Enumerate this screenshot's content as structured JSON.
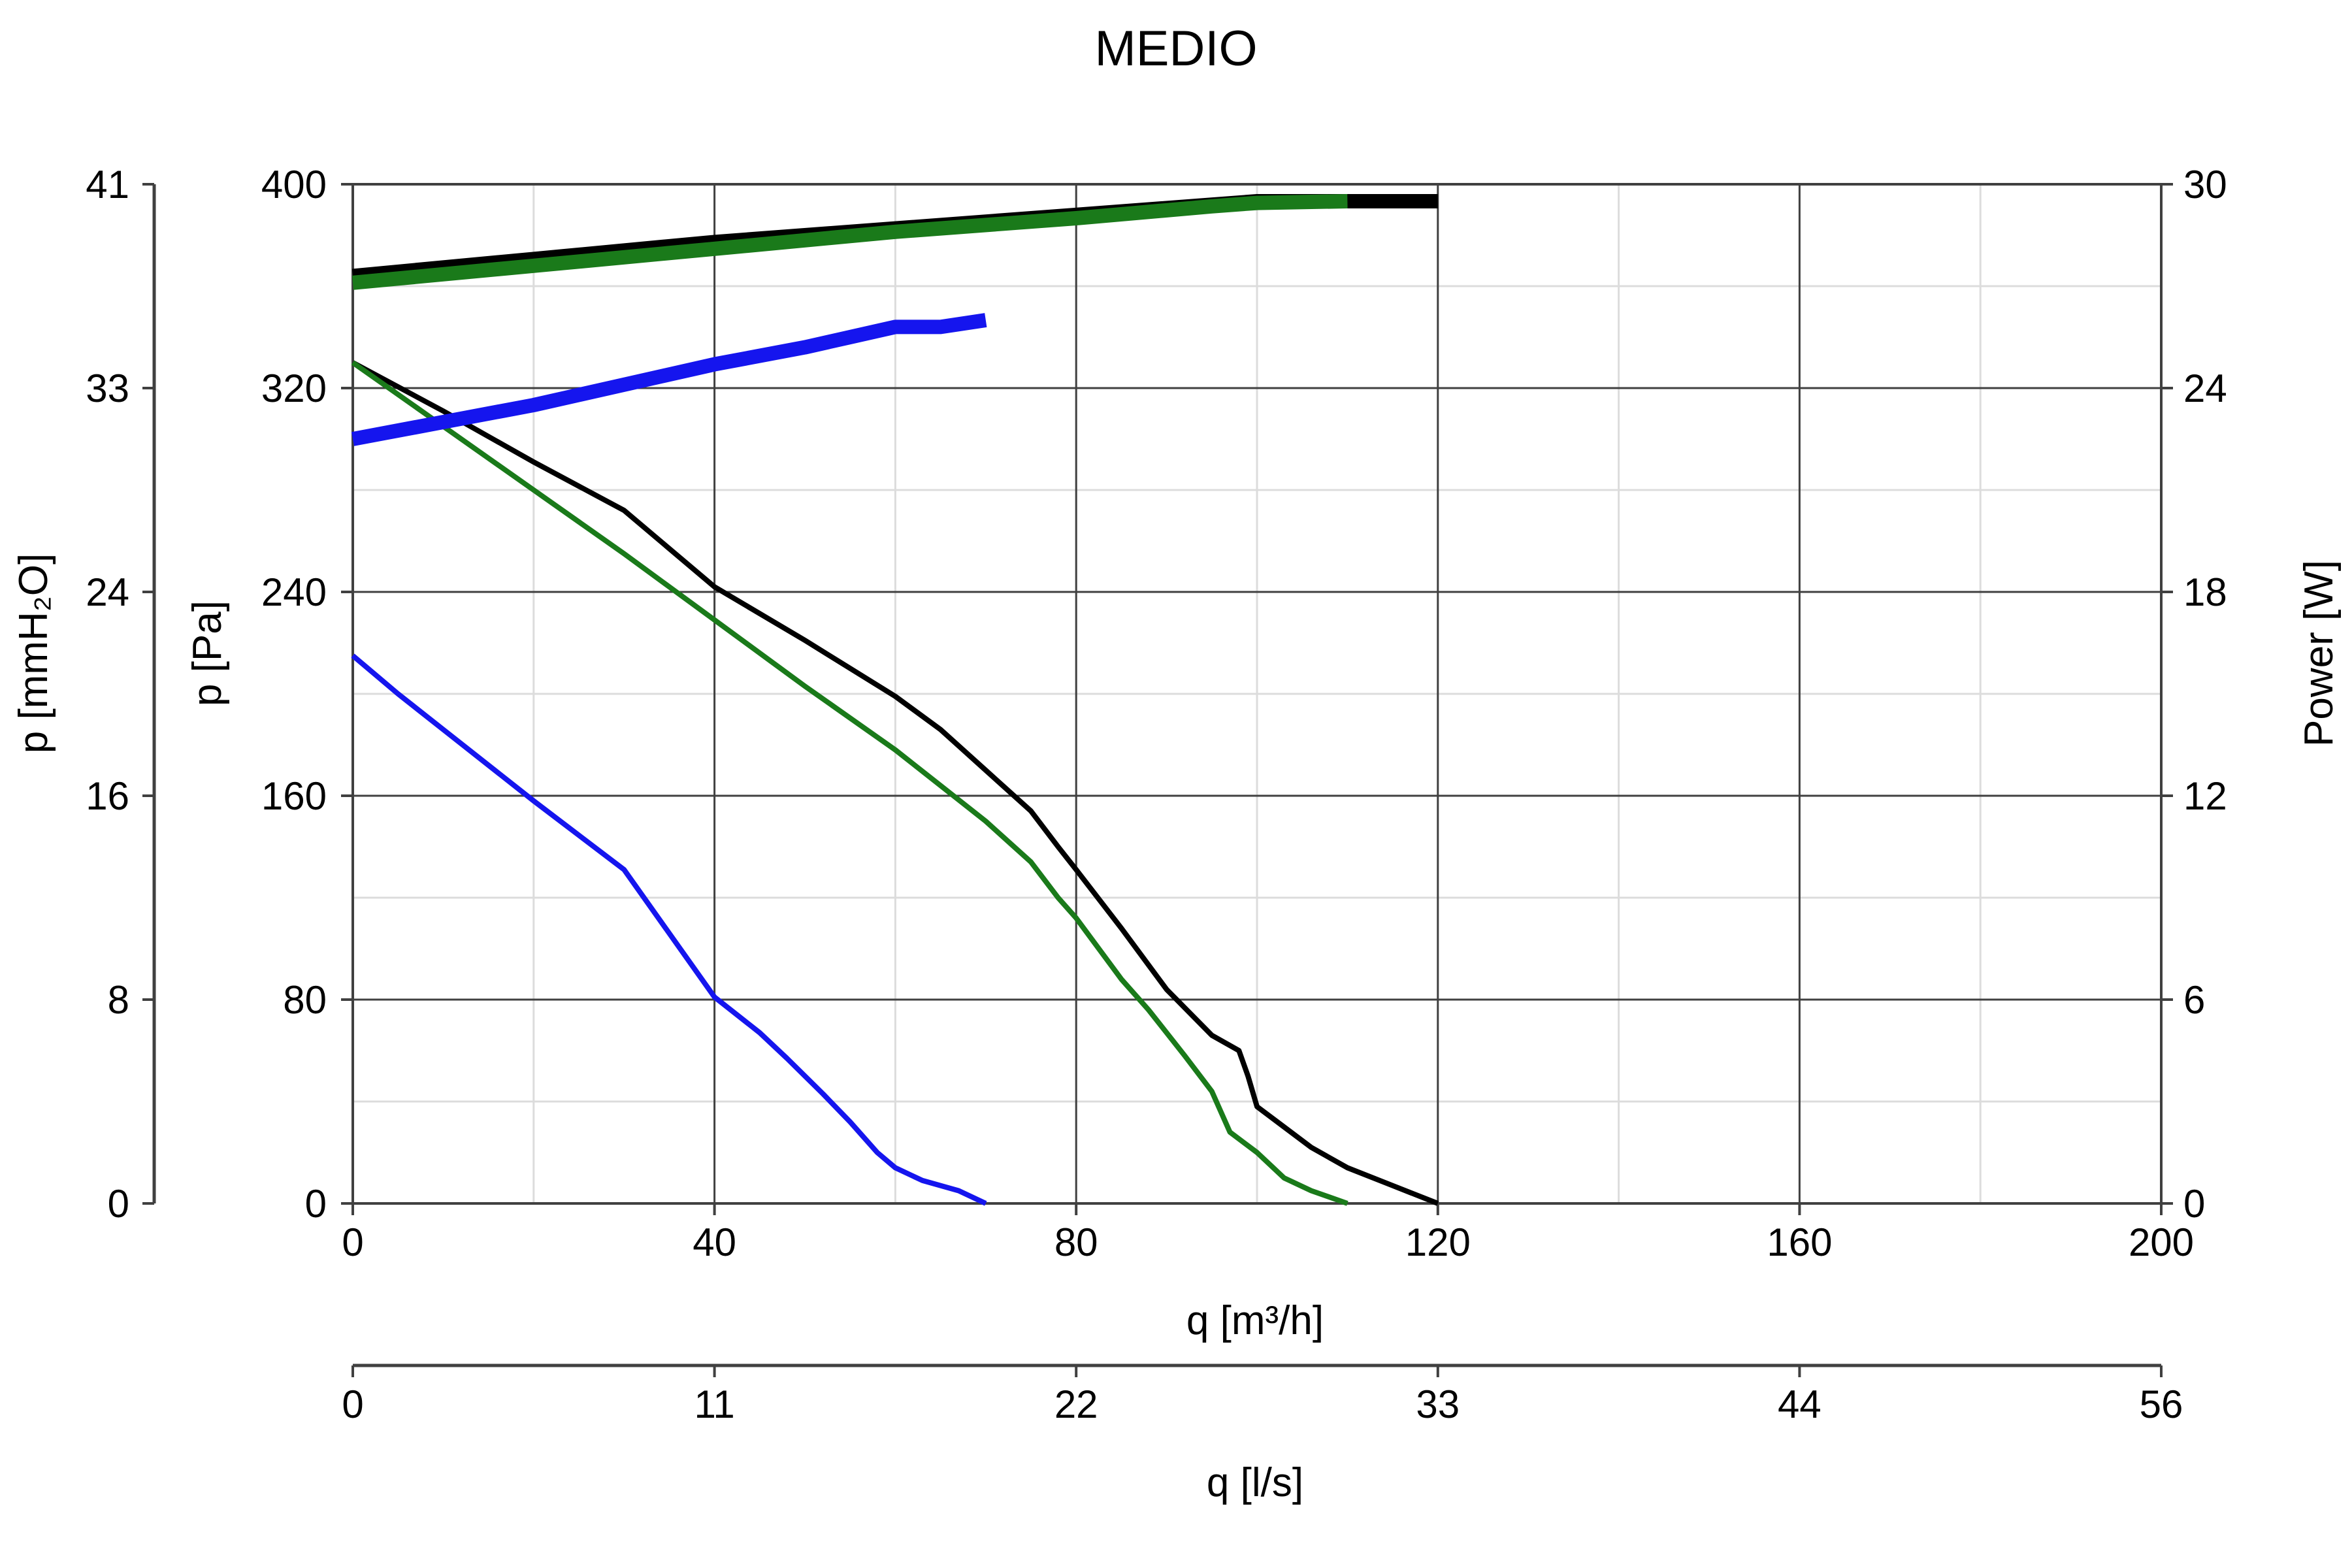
{
  "chart_data": {
    "type": "line",
    "title": "MEDIO",
    "grid": true,
    "axes": {
      "x_primary": {
        "label": "q [m³/h]",
        "range": [
          0,
          200
        ],
        "ticks": [
          "0",
          "40",
          "80",
          "120",
          "160",
          "200"
        ]
      },
      "x_secondary": {
        "label": "q [l/s]",
        "range": [
          0,
          55.56
        ],
        "ticks": [
          "0",
          "11",
          "22",
          "33",
          "44",
          "56"
        ]
      },
      "y_primary": {
        "label": "p [Pa]",
        "range": [
          0,
          400
        ],
        "ticks": [
          "0",
          "80",
          "160",
          "240",
          "320",
          "400"
        ]
      },
      "y_secondary_left": {
        "label": "p [mmH₂O]",
        "range": [
          0,
          40.8
        ],
        "ticks": [
          "0",
          "8",
          "16",
          "24",
          "33",
          "41"
        ]
      },
      "y_right": {
        "label": "Power [W]",
        "range": [
          0,
          30
        ],
        "ticks": [
          "0",
          "6",
          "12",
          "18",
          "24",
          "30"
        ]
      }
    },
    "series": [
      {
        "kind": "pressure",
        "color": "#000000",
        "axis": "p",
        "points": [
          [
            0,
            330
          ],
          [
            10,
            311
          ],
          [
            20,
            291
          ],
          [
            30,
            272
          ],
          [
            40,
            242
          ],
          [
            50,
            221
          ],
          [
            60,
            199
          ],
          [
            65,
            186
          ],
          [
            70,
            170
          ],
          [
            75,
            154
          ],
          [
            78,
            140
          ],
          [
            80,
            131
          ],
          [
            85,
            108
          ],
          [
            90,
            84
          ],
          [
            95,
            66
          ],
          [
            98,
            60
          ],
          [
            99,
            50
          ],
          [
            100,
            38
          ],
          [
            103,
            30
          ],
          [
            106,
            22
          ],
          [
            110,
            14
          ],
          [
            115,
            7
          ],
          [
            120,
            0
          ]
        ]
      },
      {
        "kind": "pressure",
        "color": "#1a7a1a",
        "axis": "p",
        "points": [
          [
            0,
            330
          ],
          [
            10,
            305
          ],
          [
            20,
            280
          ],
          [
            30,
            255
          ],
          [
            40,
            229
          ],
          [
            50,
            203
          ],
          [
            60,
            178
          ],
          [
            65,
            164
          ],
          [
            70,
            150
          ],
          [
            75,
            134
          ],
          [
            78,
            120
          ],
          [
            80,
            112
          ],
          [
            85,
            88
          ],
          [
            88,
            76
          ],
          [
            92,
            58
          ],
          [
            95,
            44
          ],
          [
            97,
            28
          ],
          [
            100,
            20
          ],
          [
            103,
            10
          ],
          [
            106,
            5
          ],
          [
            110,
            0
          ]
        ]
      },
      {
        "kind": "pressure",
        "color": "#1515ee",
        "axis": "p",
        "points": [
          [
            0,
            215
          ],
          [
            5,
            200
          ],
          [
            10,
            186
          ],
          [
            20,
            158
          ],
          [
            30,
            131
          ],
          [
            40,
            81
          ],
          [
            45,
            67
          ],
          [
            48,
            57
          ],
          [
            52,
            43
          ],
          [
            55,
            32
          ],
          [
            58,
            20
          ],
          [
            60,
            14
          ],
          [
            63,
            9
          ],
          [
            67,
            5
          ],
          [
            70,
            0
          ]
        ]
      },
      {
        "kind": "power",
        "color": "#000000",
        "axis": "power",
        "points": [
          [
            0,
            27.3
          ],
          [
            20,
            27.8
          ],
          [
            40,
            28.3
          ],
          [
            60,
            28.7
          ],
          [
            80,
            29.1
          ],
          [
            95,
            29.4
          ],
          [
            100,
            29.5
          ],
          [
            120,
            29.5
          ]
        ]
      },
      {
        "kind": "power",
        "color": "#1a7a1a",
        "axis": "power",
        "points": [
          [
            0,
            27.1
          ],
          [
            20,
            27.6
          ],
          [
            40,
            28.1
          ],
          [
            60,
            28.6
          ],
          [
            80,
            29.0
          ],
          [
            95,
            29.35
          ],
          [
            100,
            29.45
          ],
          [
            110,
            29.5
          ]
        ]
      },
      {
        "kind": "power",
        "color": "#1515ee",
        "axis": "power",
        "points": [
          [
            0,
            22.5
          ],
          [
            10,
            23.0
          ],
          [
            20,
            23.5
          ],
          [
            30,
            24.1
          ],
          [
            40,
            24.7
          ],
          [
            50,
            25.2
          ],
          [
            55,
            25.5
          ],
          [
            60,
            25.8
          ],
          [
            65,
            25.8
          ],
          [
            70,
            26.0
          ]
        ]
      }
    ]
  }
}
